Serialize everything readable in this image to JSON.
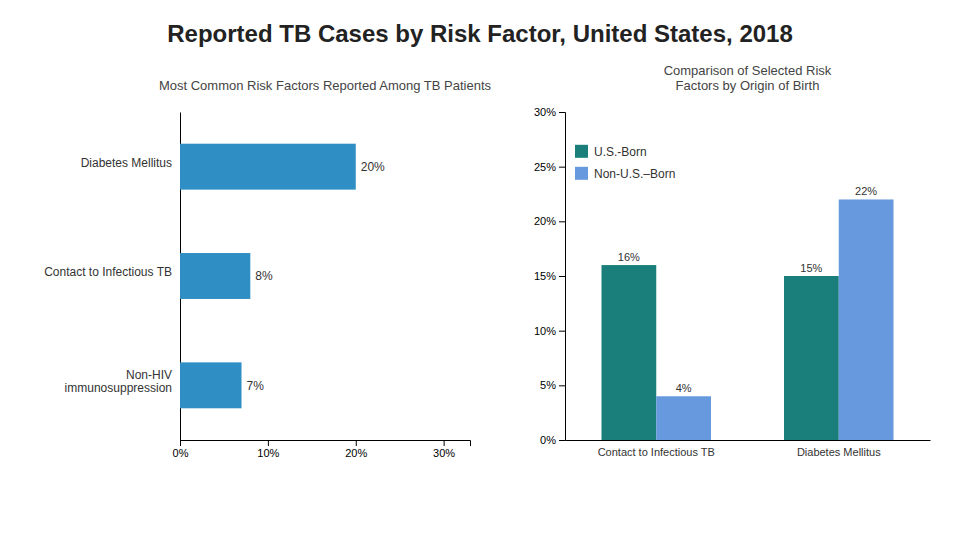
{
  "chart_data": [
    {
      "type": "bar",
      "title": "Reported TB Cases by Risk Factor, United States, 2018",
      "subtitle": "Most Common Risk Factors Reported Among TB Patients",
      "orientation": "horizontal",
      "categories": [
        "Diabetes Mellitus",
        "Contact to Infectious TB",
        "Non-HIV\nimmunosuppression"
      ],
      "values": [
        0.2,
        0.08,
        0.07
      ],
      "value_labels": [
        "20%",
        "8%",
        "7%"
      ],
      "color": "#2f8fc4",
      "xlim": [
        0,
        0.33
      ],
      "xticks": [
        {
          "value": 0,
          "label": "0%"
        },
        {
          "value": 0.1,
          "label": "10%"
        },
        {
          "value": 0.2,
          "label": "20%"
        },
        {
          "value": 0.3,
          "label": "30%"
        }
      ],
      "grid": false,
      "data_labels": true
    },
    {
      "type": "bar",
      "subtitle": "Comparison of Selected Risk\nFactors by Origin of Birth",
      "categories": [
        "Contact to Infectious TB",
        "Diabetes Mellitus"
      ],
      "series": [
        {
          "name": "U.S.-Born",
          "color": "#1a7f7a",
          "values": [
            0.16,
            0.15
          ],
          "value_labels": [
            "16%",
            "15%"
          ]
        },
        {
          "name": "Non-U.S.–Born",
          "color": "#6699dd",
          "values": [
            0.04,
            0.22
          ],
          "value_labels": [
            "4%",
            "22%"
          ]
        }
      ],
      "ylim": [
        0,
        0.3
      ],
      "yticks": [
        {
          "value": 0,
          "label": "0%"
        },
        {
          "value": 0.05,
          "label": "5%"
        },
        {
          "value": 0.1,
          "label": "10%"
        },
        {
          "value": 0.15,
          "label": "15%"
        },
        {
          "value": 0.2,
          "label": "20%"
        },
        {
          "value": 0.25,
          "label": "25%"
        },
        {
          "value": 0.3,
          "label": "30%"
        }
      ],
      "grid": false,
      "legend": "upper left",
      "data_labels": true
    }
  ]
}
